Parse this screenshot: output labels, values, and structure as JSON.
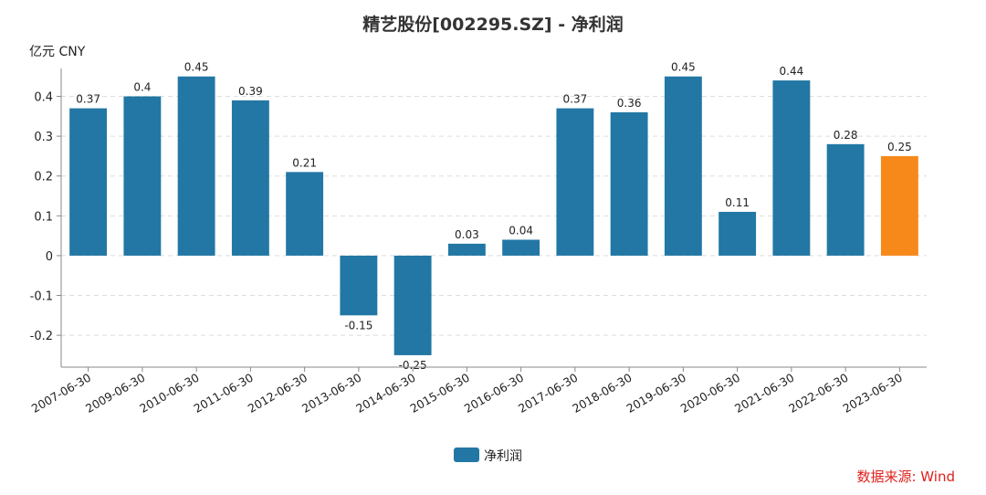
{
  "chart_data": {
    "type": "bar",
    "title": "精艺股份[002295.SZ] - 净利润",
    "y_unit": "亿元  CNY",
    "categories": [
      "2007-06-30",
      "2009-06-30",
      "2010-06-30",
      "2011-06-30",
      "2012-06-30",
      "2013-06-30",
      "2014-06-30",
      "2015-06-30",
      "2016-06-30",
      "2017-06-30",
      "2018-06-30",
      "2019-06-30",
      "2020-06-30",
      "2021-06-30",
      "2022-06-30",
      "2023-06-30"
    ],
    "series": [
      {
        "name": "净利润",
        "values": [
          0.37,
          0.4,
          0.45,
          0.39,
          0.21,
          -0.15,
          -0.25,
          0.03,
          0.04,
          0.37,
          0.36,
          0.45,
          0.11,
          0.44,
          0.28,
          0.25
        ],
        "labels": [
          "0.37",
          "0.4",
          "0.45",
          "0.39",
          "0.21",
          "-0.15",
          "-0.25",
          "0.03",
          "0.04",
          "0.37",
          "0.36",
          "0.45",
          "0.11",
          "0.44",
          "0.28",
          "0.25"
        ]
      }
    ],
    "yticks": [
      "0.4",
      "0.3",
      "0.2",
      "0.1",
      "0",
      "-0.1",
      "-0.2"
    ],
    "ytick_values": [
      0.4,
      0.3,
      0.2,
      0.1,
      0,
      -0.1,
      -0.2
    ],
    "ylim": [
      -0.28,
      0.47
    ],
    "grid": true,
    "legend_position": "bottom-center",
    "colors": {
      "bar": "#2277a4",
      "highlight": "#f7891a",
      "grid": "#dddddd",
      "axis": "#888888",
      "source": "#e0201b"
    },
    "highlight_index": 15
  },
  "source_note": "数据来源: Wind"
}
